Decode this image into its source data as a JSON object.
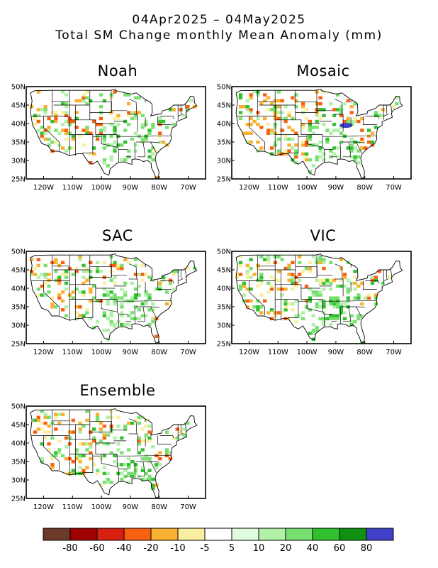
{
  "header": {
    "date_range": "04Apr2025 – 04May2025",
    "subtitle": "Total SM Change monthly Mean Anomaly (mm)"
  },
  "panels": [
    {
      "name": "Noah",
      "seed": 11,
      "blue_patch": false
    },
    {
      "name": "Mosaic",
      "seed": 23,
      "blue_patch": true
    },
    {
      "name": "SAC",
      "seed": 37,
      "blue_patch": false
    },
    {
      "name": "VIC",
      "seed": 53,
      "blue_patch": false
    },
    {
      "name": "Ensemble",
      "seed": 71,
      "blue_patch": false
    }
  ],
  "axes": {
    "lat_ticks": [
      "50N",
      "45N",
      "40N",
      "35N",
      "30N",
      "25N"
    ],
    "lon_ticks": [
      "120W",
      "110W",
      "100W",
      "90W",
      "80W",
      "70W"
    ]
  },
  "legend": {
    "colors": [
      "#6b3a2a",
      "#a00000",
      "#d82010",
      "#f86010",
      "#f8b030",
      "#f8f0a0",
      "#ffffff",
      "#e0fce0",
      "#b0f0a8",
      "#78e070",
      "#30c030",
      "#109010",
      "#4040c8"
    ],
    "labels": [
      "-80",
      "-60",
      "-40",
      "-20",
      "-10",
      "-5",
      "5",
      "10",
      "20",
      "40",
      "60",
      "80"
    ]
  }
}
